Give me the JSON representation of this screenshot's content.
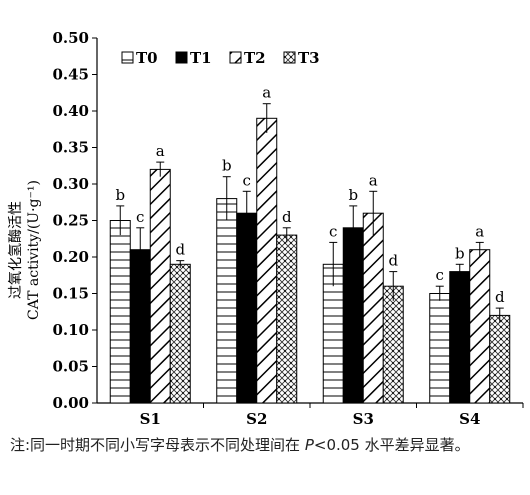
{
  "chart_data": {
    "type": "bar",
    "categories": [
      "S1",
      "S2",
      "S3",
      "S4"
    ],
    "series": [
      {
        "name": "T0",
        "pattern": "horizontal-lines",
        "values": [
          0.25,
          0.28,
          0.19,
          0.15
        ],
        "errors": [
          0.02,
          0.03,
          0.03,
          0.01
        ],
        "letters": [
          "b",
          "b",
          "c",
          "c"
        ]
      },
      {
        "name": "T1",
        "pattern": "solid-black",
        "values": [
          0.21,
          0.26,
          0.24,
          0.18
        ],
        "errors": [
          0.03,
          0.03,
          0.03,
          0.01
        ],
        "letters": [
          "c",
          "c",
          "b",
          "b"
        ]
      },
      {
        "name": "T2",
        "pattern": "diagonal-lines",
        "values": [
          0.32,
          0.39,
          0.26,
          0.21
        ],
        "errors": [
          0.01,
          0.02,
          0.03,
          0.01
        ],
        "letters": [
          "a",
          "a",
          "a",
          "a"
        ]
      },
      {
        "name": "T3",
        "pattern": "dotted-crosshatch",
        "values": [
          0.19,
          0.23,
          0.16,
          0.12
        ],
        "errors": [
          0.005,
          0.01,
          0.02,
          0.01
        ],
        "letters": [
          "d",
          "d",
          "d",
          "d"
        ]
      }
    ],
    "ylabel_cn": "过氧化氢酶活性",
    "ylabel_en": "CAT activity/(U·g⁻¹)",
    "ylim": [
      0,
      0.5
    ],
    "yticks": [
      "0.00",
      "0.05",
      "0.10",
      "0.15",
      "0.20",
      "0.25",
      "0.30",
      "0.35",
      "0.40",
      "0.45",
      "0.50"
    ],
    "legend_position": "top-left",
    "grid": false
  },
  "note": {
    "prefix": "注:同一时期不同小写字母表示不同处理间在 ",
    "p": "P",
    "suffix": "<0.05 水平差异显著。"
  },
  "colors": {
    "bar_stroke": "#000000",
    "fill": "#ffffff",
    "solid": "#000000"
  }
}
